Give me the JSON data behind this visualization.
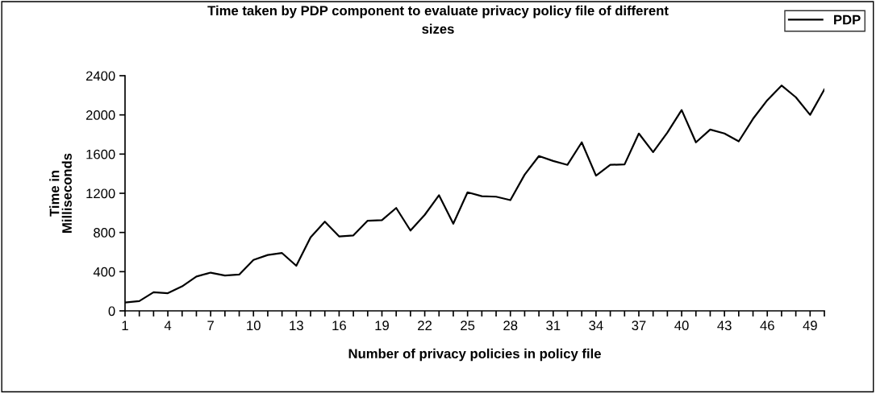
{
  "chart_data": {
    "type": "line",
    "title": "Time taken by PDP component to evaluate privacy policy file of different\nsizes",
    "xlabel": "Number of privacy policies in policy file",
    "ylabel": "Time in\nMilliseconds",
    "categories": [
      "1",
      null,
      null,
      "4",
      null,
      null,
      "7",
      null,
      null,
      "10",
      null,
      null,
      "13",
      null,
      null,
      "16",
      null,
      null,
      "19",
      null,
      null,
      "22",
      null,
      null,
      "25",
      null,
      null,
      "28",
      null,
      null,
      "31",
      null,
      null,
      "34",
      null,
      null,
      "37",
      null,
      null,
      "40",
      null,
      null,
      "43",
      null,
      null,
      "46",
      null,
      null,
      "49",
      null
    ],
    "series": [
      {
        "name": "PDP",
        "color": "#000000",
        "values": [
          85,
          100,
          190,
          180,
          250,
          350,
          390,
          360,
          370,
          520,
          570,
          590,
          460,
          750,
          910,
          760,
          770,
          920,
          925,
          1050,
          820,
          980,
          1180,
          890,
          1210,
          1170,
          1165,
          1130,
          1390,
          1580,
          1530,
          1490,
          1720,
          1380,
          1490,
          1495,
          1810,
          1620,
          1820,
          2050,
          1720,
          1850,
          1810,
          1730,
          1960,
          2150,
          2300,
          2180,
          2000,
          2260
        ]
      }
    ],
    "ylim": [
      0,
      2400
    ],
    "yticks": [
      0,
      400,
      800,
      1200,
      1600,
      2000,
      2400
    ],
    "grid": false,
    "legend": "top right",
    "marker": "none",
    "line_style": "solid"
  }
}
